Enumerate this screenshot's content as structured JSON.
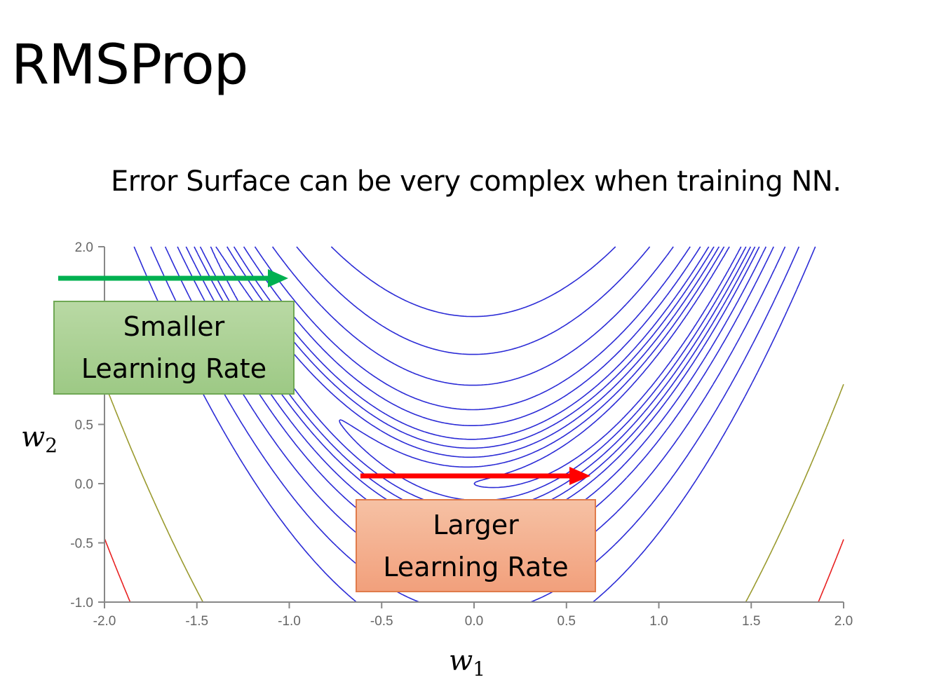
{
  "slide": {
    "title": "RMSProp",
    "subtitle": "Error Surface can be very complex when training NN."
  },
  "chart_data": {
    "type": "contour",
    "function": "rosenbrock-like error surface: (1 - w1)^2 + 100 * (w2 - w1^2)^2",
    "x_axis_label_var": "w",
    "x_axis_label_sub": "1",
    "y_axis_label_var": "w",
    "y_axis_label_sub": "2",
    "xlim": [
      -2.0,
      2.0
    ],
    "ylim": [
      -1.0,
      2.0
    ],
    "x_ticks": [
      -2.0,
      -1.5,
      -1.0,
      -0.5,
      0.0,
      0.5,
      1.0,
      1.5,
      2.0
    ],
    "x_tick_labels": [
      "-2.0",
      "-1.5",
      "-1.0",
      "-0.5",
      "0.0",
      "0.5",
      "1.0",
      "1.5",
      "2.0"
    ],
    "y_ticks": [
      -1.0,
      -0.5,
      0.0,
      0.5,
      2.0
    ],
    "y_tick_labels": [
      "-1.0",
      "-0.5",
      "0.0",
      "0.5",
      "2.0"
    ],
    "contour_levels_blue": [
      1,
      3,
      6,
      10,
      15,
      25,
      40,
      70,
      120,
      200
    ],
    "contour_levels_olive": [
      1000
    ],
    "contour_levels_red": [
      2000
    ],
    "colors": {
      "blue": "#2b2bd6",
      "olive": "#9a9a2e",
      "red": "#e82020",
      "axis": "#888888"
    },
    "annotations": [
      {
        "text_lines": [
          "Smaller",
          "Learning Rate"
        ],
        "color": "#a9d18e",
        "arrow_color": "#00b050",
        "arrow_direction": "right"
      },
      {
        "text_lines": [
          "Larger",
          "Learning Rate"
        ],
        "color": "#f4b183",
        "arrow_color": "#ff0000",
        "arrow_direction": "right"
      }
    ]
  }
}
